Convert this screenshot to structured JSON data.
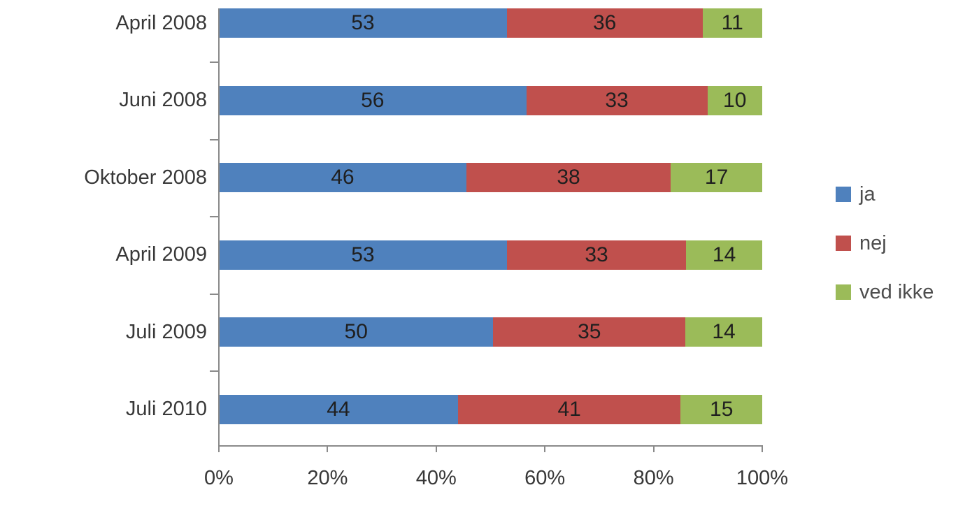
{
  "chart_data": {
    "type": "bar",
    "orientation": "horizontal",
    "stacked": true,
    "percent_stacked": true,
    "title": "",
    "categories": [
      "April 2008",
      "Juni 2008",
      "Oktober 2008",
      "April 2009",
      "Juli 2009",
      "Juli 2010"
    ],
    "series": [
      {
        "name": "ja",
        "color": "#4F81BD",
        "values": [
          53,
          56,
          46,
          53,
          50,
          44
        ]
      },
      {
        "name": "nej",
        "color": "#C0504D",
        "values": [
          36,
          33,
          38,
          33,
          35,
          41
        ]
      },
      {
        "name": "ved ikke",
        "color": "#9BBB59",
        "values": [
          11,
          10,
          17,
          14,
          14,
          15
        ]
      }
    ],
    "data_labels": true,
    "x_axis": {
      "min": 0,
      "max": 100,
      "unit": "%",
      "tick_labels": [
        "0%",
        "20%",
        "40%",
        "60%",
        "80%",
        "100%"
      ]
    },
    "grid": false,
    "legend": {
      "position": "right",
      "entries": [
        "ja",
        "nej",
        "ved ikke"
      ]
    }
  },
  "colors": {
    "axis": "#8A8A8A",
    "category_text": "#383838",
    "tick_text": "#383838",
    "data_label_text": "#1F1F1F",
    "legend_text": "#4D4D4D",
    "background": "#FFFFFF"
  }
}
